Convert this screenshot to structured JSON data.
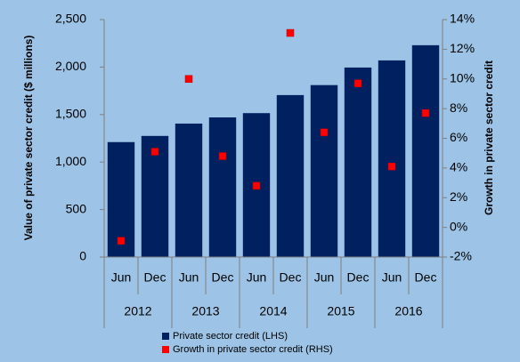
{
  "chart_data": {
    "type": "bar_scatter",
    "categories": [
      "Jun",
      "Dec",
      "Jun",
      "Dec",
      "Jun",
      "Dec",
      "Jun",
      "Dec",
      "Jun",
      "Dec"
    ],
    "groups": [
      "2012",
      "2013",
      "2014",
      "2015",
      "2016"
    ],
    "ylabel": "Value of private sector credit ($ millions)",
    "y2label": "Growth in private sector credit",
    "series": [
      {
        "name": "Private sector credit (LHS)",
        "color": "#002060",
        "type": "bar",
        "values": [
          1210,
          1275,
          1405,
          1470,
          1515,
          1705,
          1810,
          1995,
          2070,
          2230
        ]
      },
      {
        "name": "Growth in private sector credit (RHS)",
        "color": "#ff0000",
        "type": "scatter",
        "axis": "y2",
        "values": [
          -0.9,
          5.1,
          10.0,
          4.8,
          2.8,
          13.1,
          6.4,
          9.7,
          4.1,
          7.7
        ]
      }
    ],
    "ylim": [
      0,
      2500
    ],
    "yticks": [
      0,
      500,
      {
        "value": 1000,
        "label": "1,000"
      },
      {
        "value": 1500,
        "label": "1,500"
      },
      {
        "value": 2000,
        "label": "2,000"
      },
      {
        "value": 2500,
        "label": "2,500"
      }
    ],
    "y2lim": [
      -2,
      14
    ],
    "y2ticks": [
      {
        "value": -2,
        "label": "-2%"
      },
      {
        "value": 0,
        "label": "0%"
      },
      {
        "value": 2,
        "label": "2%"
      },
      {
        "value": 4,
        "label": "4%"
      },
      {
        "value": 6,
        "label": "6%"
      },
      {
        "value": 8,
        "label": "8%"
      },
      {
        "value": 10,
        "label": "10%"
      },
      {
        "value": 12,
        "label": "12%"
      },
      {
        "value": 14,
        "label": "14%"
      }
    ],
    "legend": "bottom"
  }
}
